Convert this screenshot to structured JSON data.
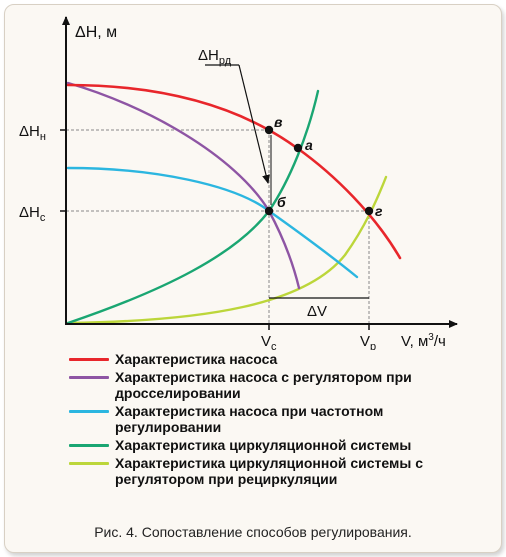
{
  "axes": {
    "y_label": "ΔH, м",
    "x_label_main": "V, м",
    "x_label_sup": "3",
    "x_label_tail": "/ч"
  },
  "ticks": {
    "dh_n_main": "ΔH",
    "dh_n_sub": "н",
    "dh_c_main": "ΔH",
    "dh_c_sub": "с",
    "v_c_main": "V",
    "v_c_sub": "с",
    "v_p_main": "V",
    "v_p_sub": "р"
  },
  "annotations": {
    "dh_rd_main": "ΔH",
    "dh_rd_sub": "рд",
    "dv": "ΔV"
  },
  "points": {
    "a": "а",
    "b": "б",
    "v": "в",
    "g": "г"
  },
  "colors": {
    "pump": "#e8262b",
    "throttle": "#8e55a4",
    "frequency": "#2bb6e0",
    "system": "#1aa672",
    "recirc": "#bcd63a"
  },
  "legend": [
    {
      "label": "Характеристика насоса",
      "color": "#e8262b"
    },
    {
      "label": "Характеристика насоса с регулятором при дросселировании",
      "color": "#8e55a4"
    },
    {
      "label": "Характеристика насоса при частотном регулировании",
      "color": "#2bb6e0"
    },
    {
      "label": "Характеристика циркуляционной системы",
      "color": "#1aa672"
    },
    {
      "label": "Характеристика циркуляционной системы с регулятором при рециркуляции",
      "color": "#bcd63a"
    }
  ],
  "caption": "Рис. 4. Сопоставление способов регулирования."
}
